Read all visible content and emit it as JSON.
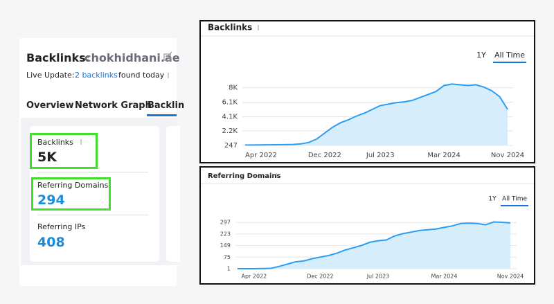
{
  "header": {
    "title": "Backlinks:",
    "domain": "chokhidhani.ae",
    "live_update": {
      "label": "Live Update:",
      "link": "2 backlinks",
      "suffix": "found today"
    }
  },
  "tabs": [
    "Overview",
    "Network Graph",
    "Backlin"
  ],
  "metrics": [
    {
      "label": "Backlinks",
      "value": "5K"
    },
    {
      "label": "Referring Domains",
      "value": 294
    },
    {
      "label": "Referring IPs",
      "value": 408
    }
  ],
  "chart_data": [
    {
      "type": "area",
      "title": "Backlinks",
      "range_options": [
        "1Y",
        "All Time"
      ],
      "active_range": 1,
      "categories": [
        null,
        null,
        "Apr 2022",
        null,
        null,
        null,
        null,
        null,
        null,
        null,
        "Dec 2022",
        null,
        null,
        null,
        null,
        null,
        null,
        "Jul 2023",
        null,
        null,
        null,
        null,
        null,
        null,
        null,
        "Mar 2024",
        null,
        null,
        null,
        null,
        null,
        null,
        null,
        "Nov 2024"
      ],
      "values": [
        300,
        300,
        320,
        330,
        340,
        350,
        380,
        450,
        650,
        1100,
        1900,
        2700,
        3300,
        3700,
        4200,
        4600,
        5100,
        5600,
        5800,
        6000,
        6100,
        6300,
        6700,
        7100,
        7500,
        8300,
        8500,
        8400,
        8300,
        8400,
        8100,
        7600,
        6800,
        5100
      ],
      "color": "#2a9df4",
      "fill": "#d6edfb",
      "ylim": [
        247,
        9000
      ],
      "yticks": [
        247,
        {
          "value": 2185,
          "label": "2.2K"
        },
        {
          "value": 4124,
          "label": "4.1K"
        },
        {
          "value": 6062,
          "label": "6.1K"
        },
        {
          "value": 8000,
          "label": "8K"
        }
      ],
      "grid": true
    },
    {
      "type": "area",
      "title": "Referring Domains",
      "range_options": [
        "1Y",
        "All Time"
      ],
      "active_range": 1,
      "categories": [
        null,
        null,
        "Apr 2022",
        null,
        null,
        null,
        null,
        null,
        null,
        null,
        "Dec 2022",
        null,
        null,
        null,
        null,
        null,
        null,
        "Jul 2023",
        null,
        null,
        null,
        null,
        null,
        null,
        null,
        "Mar 2024",
        null,
        null,
        null,
        null,
        null,
        null,
        null,
        "Nov 2024"
      ],
      "values": [
        1,
        1,
        1,
        2,
        3,
        15,
        30,
        45,
        50,
        65,
        75,
        85,
        100,
        120,
        135,
        150,
        170,
        180,
        185,
        210,
        225,
        235,
        245,
        250,
        255,
        265,
        275,
        290,
        292,
        290,
        282,
        300,
        298,
        294
      ],
      "color": "#2a9df4",
      "fill": "#d6edfb",
      "ylim": [
        1,
        320
      ],
      "yticks": [
        1,
        75,
        149,
        223,
        297
      ],
      "grid": true
    }
  ]
}
